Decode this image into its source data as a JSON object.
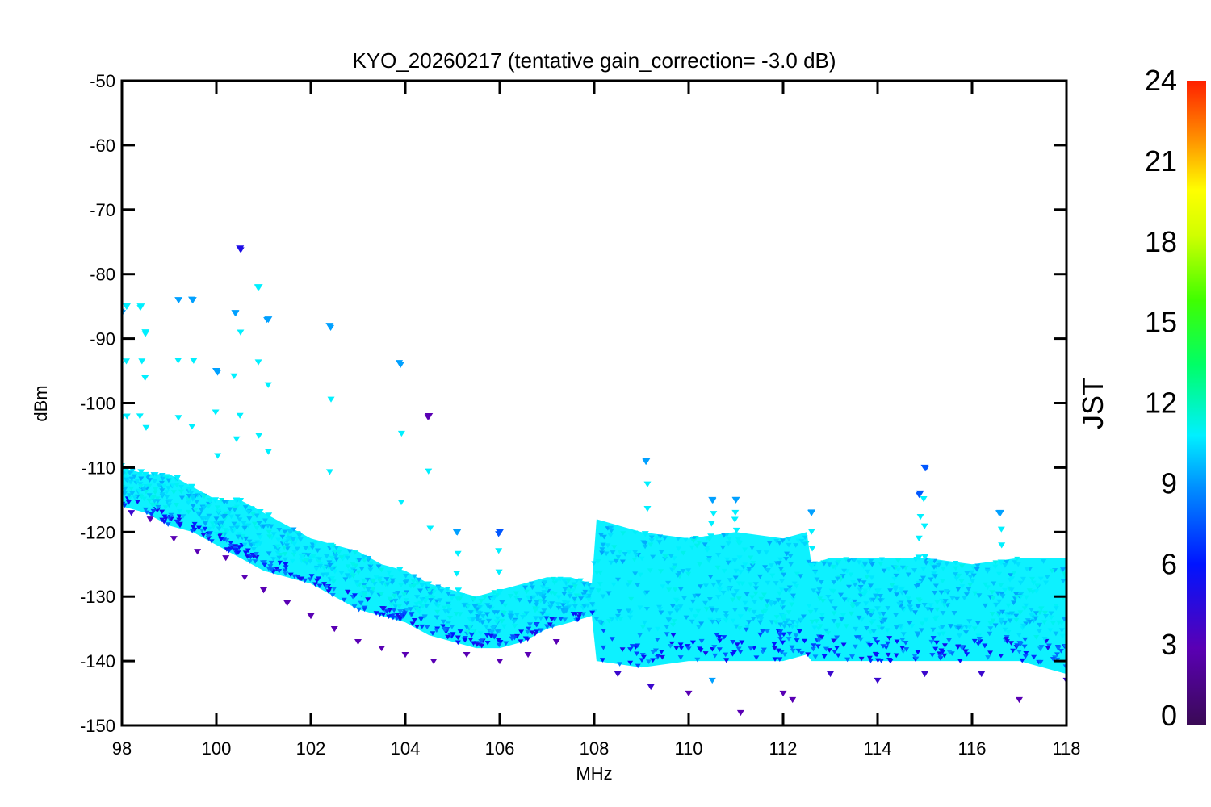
{
  "chart_data": {
    "type": "scatter",
    "title": "KYO_20260217 (tentative gain_correction= -3.0 dB)",
    "xlabel": "MHz",
    "ylabel": "dBm",
    "xlim": [
      98,
      118
    ],
    "ylim": [
      -150,
      -50
    ],
    "xticks": [
      "98",
      "100",
      "102",
      "104",
      "106",
      "108",
      "110",
      "112",
      "114",
      "116",
      "118"
    ],
    "yticks": [
      "-50",
      "-60",
      "-70",
      "-80",
      "-90",
      "-100",
      "-110",
      "-120",
      "-130",
      "-140",
      "-150"
    ],
    "grid": false,
    "marker": "downward triangle",
    "colorbar": {
      "label": "JST",
      "range": [
        0,
        24
      ],
      "ticks": [
        "0",
        "3",
        "6",
        "9",
        "12",
        "15",
        "18",
        "21",
        "24"
      ],
      "colormap": "rainbow (purple-blue-cyan-green-yellow-red)"
    },
    "series": [
      {
        "role": "noise floor envelope (upper edge)",
        "x": [
          98.0,
          98.5,
          99.0,
          99.5,
          100.0,
          100.5,
          101.0,
          101.5,
          102.0,
          102.5,
          103.0,
          103.5,
          104.0,
          104.5,
          105.0,
          105.5,
          106.0,
          106.5,
          107.0,
          107.5,
          107.95,
          108.05,
          109.0,
          110.0,
          111.0,
          112.0,
          112.5,
          112.6,
          113.0,
          114.0,
          115.0,
          116.0,
          117.0,
          118.0
        ],
        "y": [
          -110,
          -111,
          -111,
          -113,
          -115,
          -115,
          -117,
          -119,
          -121,
          -122,
          -123,
          -125,
          -126,
          -128,
          -129,
          -130,
          -129,
          -128,
          -127,
          -127,
          -128,
          -118,
          -120,
          -121,
          -120,
          -121,
          -120,
          -125,
          -124,
          -124,
          -124,
          -125,
          -124,
          -124
        ],
        "color_hour": 9
      },
      {
        "role": "noise floor envelope (lower edge)",
        "x": [
          98.0,
          98.5,
          99.0,
          99.5,
          100.0,
          100.5,
          101.0,
          101.5,
          102.0,
          102.5,
          103.0,
          103.5,
          104.0,
          104.5,
          105.0,
          105.5,
          106.0,
          106.5,
          107.0,
          107.5,
          107.95,
          108.05,
          109.0,
          110.0,
          111.0,
          112.0,
          112.5,
          112.6,
          113.0,
          114.0,
          115.0,
          116.0,
          117.0,
          118.0
        ],
        "y": [
          -116,
          -117,
          -119,
          -120,
          -122,
          -124,
          -126,
          -127,
          -128,
          -130,
          -132,
          -133,
          -134,
          -136,
          -137,
          -138,
          -138,
          -137,
          -135,
          -134,
          -133,
          -140,
          -141,
          -140,
          -140,
          -140,
          -139,
          -140,
          -140,
          -140,
          -140,
          -140,
          -140,
          -142
        ],
        "color_hour": 6
      },
      {
        "role": "signal peaks",
        "points": [
          [
            98.0,
            -86,
            8
          ],
          [
            98.1,
            -85,
            9
          ],
          [
            98.4,
            -85,
            9
          ],
          [
            98.5,
            -89,
            9
          ],
          [
            99.2,
            -84,
            8
          ],
          [
            99.5,
            -84,
            8
          ],
          [
            100.0,
            -95,
            8
          ],
          [
            100.5,
            -76,
            5
          ],
          [
            100.4,
            -86,
            8
          ],
          [
            100.9,
            -82,
            9
          ],
          [
            101.1,
            -87,
            8
          ],
          [
            102.4,
            -88,
            8
          ],
          [
            103.9,
            -94,
            8
          ],
          [
            104.5,
            -102,
            3
          ],
          [
            105.1,
            -120,
            8
          ],
          [
            106.0,
            -120,
            7
          ],
          [
            109.1,
            -109,
            8
          ],
          [
            110.5,
            -115,
            8
          ],
          [
            111.0,
            -115,
            8
          ],
          [
            112.6,
            -117,
            8
          ],
          [
            114.9,
            -114,
            7
          ],
          [
            115.0,
            -110,
            7
          ],
          [
            116.6,
            -117,
            8
          ]
        ]
      },
      {
        "role": "outlier low points",
        "points": [
          [
            98.2,
            -117,
            4
          ],
          [
            98.6,
            -118,
            3
          ],
          [
            99.1,
            -121,
            3
          ],
          [
            99.6,
            -123,
            3
          ],
          [
            100.2,
            -124,
            3
          ],
          [
            100.6,
            -127,
            3
          ],
          [
            101.0,
            -129,
            3
          ],
          [
            101.5,
            -131,
            3
          ],
          [
            102.0,
            -133,
            3
          ],
          [
            102.5,
            -135,
            3
          ],
          [
            103.0,
            -137,
            3
          ],
          [
            103.5,
            -138,
            3
          ],
          [
            104.0,
            -139,
            3
          ],
          [
            104.6,
            -140,
            3
          ],
          [
            105.3,
            -139,
            3
          ],
          [
            106.0,
            -140,
            3
          ],
          [
            106.6,
            -139,
            3
          ],
          [
            107.2,
            -137,
            3
          ],
          [
            108.5,
            -142,
            4
          ],
          [
            109.2,
            -144,
            4
          ],
          [
            110.0,
            -145,
            3
          ],
          [
            110.5,
            -143,
            8
          ],
          [
            111.1,
            -148,
            3
          ],
          [
            112.0,
            -145,
            3
          ],
          [
            112.2,
            -146,
            3
          ],
          [
            113.0,
            -142,
            4
          ],
          [
            114.0,
            -143,
            4
          ],
          [
            115.0,
            -142,
            4
          ],
          [
            116.2,
            -142,
            4
          ],
          [
            117.0,
            -146,
            3
          ],
          [
            118.0,
            -143,
            4
          ]
        ]
      }
    ]
  }
}
